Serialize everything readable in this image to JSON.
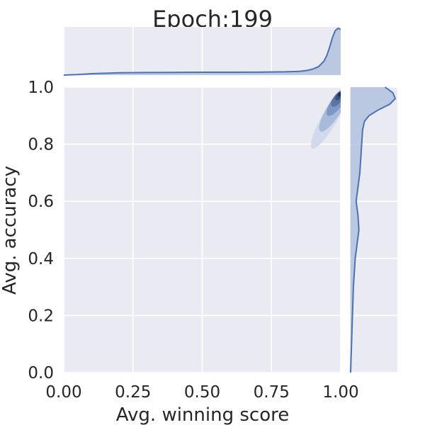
{
  "chart_data": {
    "type": "jointplot-kde",
    "title": "Epoch:199",
    "xlabel": "Avg. winning score",
    "ylabel": "Avg. accuracy",
    "xlim": [
      0,
      1
    ],
    "ylim": [
      0,
      1
    ],
    "x_ticks": [
      "0.00",
      "0.25",
      "0.50",
      "0.75",
      "1.00"
    ],
    "y_ticks": [
      "0.0",
      "0.2",
      "0.4",
      "0.6",
      "0.8",
      "1.0"
    ],
    "grid": true,
    "colors": {
      "background": "#eaeaf2",
      "grid": "#ffffff",
      "line": "#4c72b0",
      "fill": "#b3c2de",
      "contours": [
        "#d2d9eb",
        "#a8b9d9",
        "#7f97c4",
        "#5a74a8",
        "#3a527f",
        "#1f3050"
      ]
    },
    "joint_kde_contours": [
      {
        "cx": 0.965,
        "cy": 0.9,
        "angle_deg": 60,
        "rx": 0.135,
        "ry": 0.028,
        "level": 1
      },
      {
        "cx": 0.975,
        "cy": 0.92,
        "angle_deg": 58,
        "rx": 0.09,
        "ry": 0.025,
        "level": 2
      },
      {
        "cx": 0.985,
        "cy": 0.945,
        "angle_deg": 55,
        "rx": 0.055,
        "ry": 0.02,
        "level": 3
      },
      {
        "cx": 0.99,
        "cy": 0.96,
        "angle_deg": 52,
        "rx": 0.035,
        "ry": 0.015,
        "level": 4
      },
      {
        "cx": 0.995,
        "cy": 0.97,
        "angle_deg": 50,
        "rx": 0.02,
        "ry": 0.01,
        "level": 5
      },
      {
        "cx": 0.998,
        "cy": 0.975,
        "angle_deg": 50,
        "rx": 0.01,
        "ry": 0.006,
        "level": 6
      }
    ],
    "marginal_x_density": {
      "x": [
        0.0,
        0.05,
        0.1,
        0.2,
        0.3,
        0.4,
        0.5,
        0.6,
        0.7,
        0.8,
        0.85,
        0.88,
        0.9,
        0.92,
        0.94,
        0.95,
        0.96,
        0.97,
        0.98,
        0.99,
        1.0
      ],
      "y": [
        0.0,
        0.01,
        0.03,
        0.05,
        0.055,
        0.058,
        0.06,
        0.06,
        0.062,
        0.07,
        0.08,
        0.1,
        0.13,
        0.18,
        0.3,
        0.42,
        0.6,
        0.8,
        0.95,
        1.0,
        0.98
      ]
    },
    "marginal_y_density": {
      "y": [
        0.0,
        0.05,
        0.1,
        0.15,
        0.2,
        0.3,
        0.35,
        0.4,
        0.45,
        0.5,
        0.55,
        0.6,
        0.65,
        0.7,
        0.75,
        0.8,
        0.85,
        0.88,
        0.9,
        0.92,
        0.94,
        0.96,
        0.98,
        1.0
      ],
      "density": [
        0.0,
        0.01,
        0.02,
        0.03,
        0.04,
        0.06,
        0.08,
        0.1,
        0.14,
        0.18,
        0.16,
        0.12,
        0.16,
        0.2,
        0.22,
        0.24,
        0.26,
        0.3,
        0.4,
        0.6,
        0.85,
        0.97,
        0.92,
        0.75
      ]
    }
  }
}
